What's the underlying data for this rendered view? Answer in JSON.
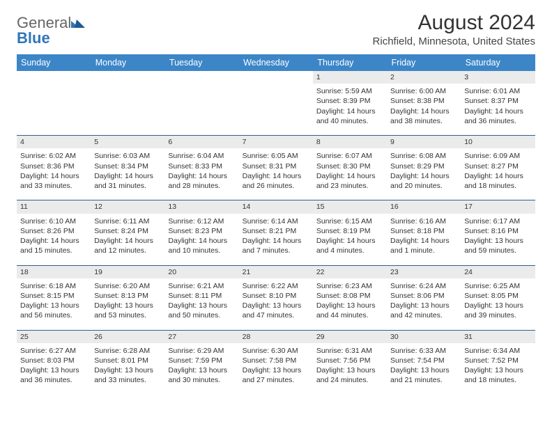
{
  "logo": {
    "general": "General",
    "blue": "Blue"
  },
  "title": "August 2024",
  "location": "Richfield, Minnesota, United States",
  "colors": {
    "header_bg": "#3c86c8",
    "header_text": "#ffffff",
    "daynum_bg": "#ebebeb",
    "row_divider": "#2f5f8a",
    "logo_accent": "#2f76b9",
    "text": "#333333"
  },
  "weekdays": [
    "Sunday",
    "Monday",
    "Tuesday",
    "Wednesday",
    "Thursday",
    "Friday",
    "Saturday"
  ],
  "weeks": [
    [
      null,
      null,
      null,
      null,
      {
        "n": "1",
        "sr": "5:59 AM",
        "ss": "8:39 PM",
        "dl": "14 hours and 40 minutes."
      },
      {
        "n": "2",
        "sr": "6:00 AM",
        "ss": "8:38 PM",
        "dl": "14 hours and 38 minutes."
      },
      {
        "n": "3",
        "sr": "6:01 AM",
        "ss": "8:37 PM",
        "dl": "14 hours and 36 minutes."
      }
    ],
    [
      {
        "n": "4",
        "sr": "6:02 AM",
        "ss": "8:36 PM",
        "dl": "14 hours and 33 minutes."
      },
      {
        "n": "5",
        "sr": "6:03 AM",
        "ss": "8:34 PM",
        "dl": "14 hours and 31 minutes."
      },
      {
        "n": "6",
        "sr": "6:04 AM",
        "ss": "8:33 PM",
        "dl": "14 hours and 28 minutes."
      },
      {
        "n": "7",
        "sr": "6:05 AM",
        "ss": "8:31 PM",
        "dl": "14 hours and 26 minutes."
      },
      {
        "n": "8",
        "sr": "6:07 AM",
        "ss": "8:30 PM",
        "dl": "14 hours and 23 minutes."
      },
      {
        "n": "9",
        "sr": "6:08 AM",
        "ss": "8:29 PM",
        "dl": "14 hours and 20 minutes."
      },
      {
        "n": "10",
        "sr": "6:09 AM",
        "ss": "8:27 PM",
        "dl": "14 hours and 18 minutes."
      }
    ],
    [
      {
        "n": "11",
        "sr": "6:10 AM",
        "ss": "8:26 PM",
        "dl": "14 hours and 15 minutes."
      },
      {
        "n": "12",
        "sr": "6:11 AM",
        "ss": "8:24 PM",
        "dl": "14 hours and 12 minutes."
      },
      {
        "n": "13",
        "sr": "6:12 AM",
        "ss": "8:23 PM",
        "dl": "14 hours and 10 minutes."
      },
      {
        "n": "14",
        "sr": "6:14 AM",
        "ss": "8:21 PM",
        "dl": "14 hours and 7 minutes."
      },
      {
        "n": "15",
        "sr": "6:15 AM",
        "ss": "8:19 PM",
        "dl": "14 hours and 4 minutes."
      },
      {
        "n": "16",
        "sr": "6:16 AM",
        "ss": "8:18 PM",
        "dl": "14 hours and 1 minute."
      },
      {
        "n": "17",
        "sr": "6:17 AM",
        "ss": "8:16 PM",
        "dl": "13 hours and 59 minutes."
      }
    ],
    [
      {
        "n": "18",
        "sr": "6:18 AM",
        "ss": "8:15 PM",
        "dl": "13 hours and 56 minutes."
      },
      {
        "n": "19",
        "sr": "6:20 AM",
        "ss": "8:13 PM",
        "dl": "13 hours and 53 minutes."
      },
      {
        "n": "20",
        "sr": "6:21 AM",
        "ss": "8:11 PM",
        "dl": "13 hours and 50 minutes."
      },
      {
        "n": "21",
        "sr": "6:22 AM",
        "ss": "8:10 PM",
        "dl": "13 hours and 47 minutes."
      },
      {
        "n": "22",
        "sr": "6:23 AM",
        "ss": "8:08 PM",
        "dl": "13 hours and 44 minutes."
      },
      {
        "n": "23",
        "sr": "6:24 AM",
        "ss": "8:06 PM",
        "dl": "13 hours and 42 minutes."
      },
      {
        "n": "24",
        "sr": "6:25 AM",
        "ss": "8:05 PM",
        "dl": "13 hours and 39 minutes."
      }
    ],
    [
      {
        "n": "25",
        "sr": "6:27 AM",
        "ss": "8:03 PM",
        "dl": "13 hours and 36 minutes."
      },
      {
        "n": "26",
        "sr": "6:28 AM",
        "ss": "8:01 PM",
        "dl": "13 hours and 33 minutes."
      },
      {
        "n": "27",
        "sr": "6:29 AM",
        "ss": "7:59 PM",
        "dl": "13 hours and 30 minutes."
      },
      {
        "n": "28",
        "sr": "6:30 AM",
        "ss": "7:58 PM",
        "dl": "13 hours and 27 minutes."
      },
      {
        "n": "29",
        "sr": "6:31 AM",
        "ss": "7:56 PM",
        "dl": "13 hours and 24 minutes."
      },
      {
        "n": "30",
        "sr": "6:33 AM",
        "ss": "7:54 PM",
        "dl": "13 hours and 21 minutes."
      },
      {
        "n": "31",
        "sr": "6:34 AM",
        "ss": "7:52 PM",
        "dl": "13 hours and 18 minutes."
      }
    ]
  ]
}
